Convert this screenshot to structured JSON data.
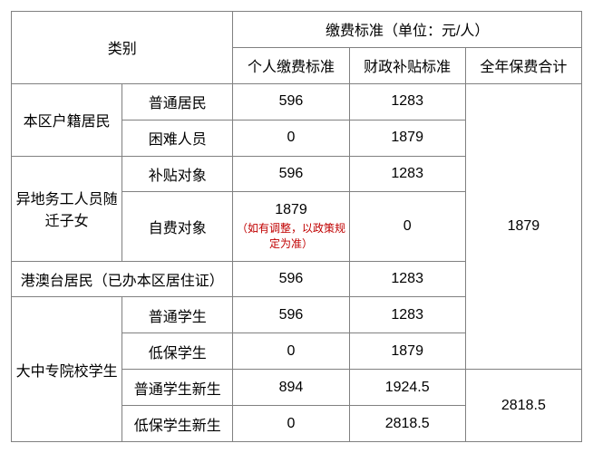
{
  "header": {
    "category_label": "类别",
    "standard_header": "缴费标准（单位：元/人）",
    "col_personal": "个人缴费标准",
    "col_subsidy": "财政补贴标准",
    "col_total": "全年保费合计"
  },
  "groups": {
    "g1": {
      "label": "本区户籍居民",
      "r1": {
        "sub": "普通居民",
        "personal": "596",
        "subsidy": "1283"
      },
      "r2": {
        "sub": "困难人员",
        "personal": "0",
        "subsidy": "1879"
      }
    },
    "g2": {
      "label": "异地务工人员随迁子女",
      "r1": {
        "sub": "补贴对象",
        "personal": "596",
        "subsidy": "1283"
      },
      "r2": {
        "sub": "自费对象",
        "personal": "1879",
        "subsidy": "0",
        "personal_note": "（如有调整，以政策规定为准）"
      }
    },
    "g3": {
      "label": "港澳台居民（已办本区居住证）",
      "personal": "596",
      "subsidy": "1283"
    },
    "g4": {
      "label": "大中专院校学生",
      "r1": {
        "sub": "普通学生",
        "personal": "596",
        "subsidy": "1283"
      },
      "r2": {
        "sub": "低保学生",
        "personal": "0",
        "subsidy": "1879"
      },
      "r3": {
        "sub": "普通学生新生",
        "personal": "894",
        "subsidy": "1924.5"
      },
      "r4": {
        "sub": "低保学生新生",
        "personal": "0",
        "subsidy": "2818.5"
      }
    }
  },
  "totals": {
    "upper": "1879",
    "lower": "2818.5"
  },
  "style": {
    "border_color": "#808080",
    "note_color": "#c00000",
    "font_size_pt": 12,
    "note_font_size_pt": 9,
    "background": "#ffffff"
  }
}
